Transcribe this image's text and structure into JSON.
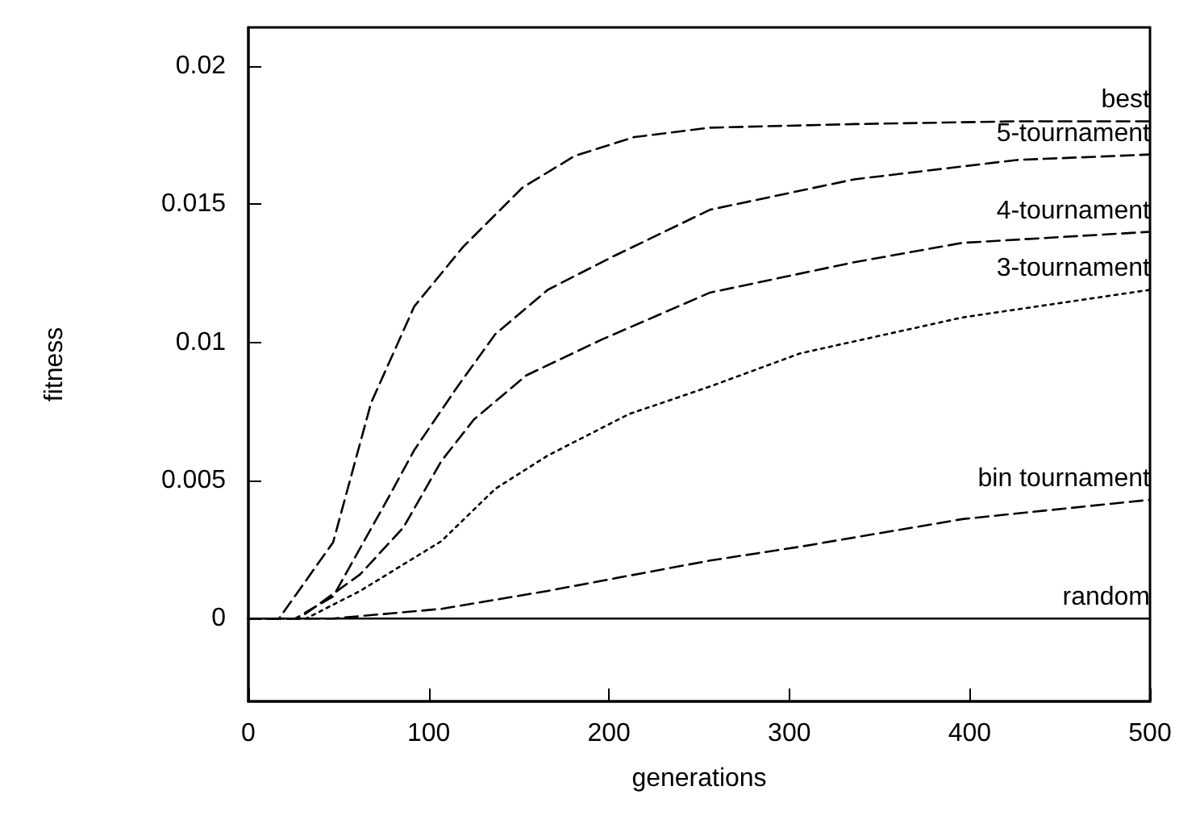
{
  "chart_data": {
    "type": "line",
    "xlabel": "generations",
    "ylabel": "fitness",
    "xlim": [
      0,
      500
    ],
    "xticks": [
      0,
      100,
      200,
      300,
      400,
      500
    ],
    "ylim": [
      -0.003,
      0.0214
    ],
    "yticks": [
      0,
      0.005,
      0.01,
      0.015,
      0.02
    ],
    "grid": false,
    "legend": false,
    "marker": "none",
    "series": [
      {
        "name": "best",
        "color": "#000000",
        "line_style": "dashed",
        "x": [
          0,
          17,
          47,
          68,
          92,
          119,
          152,
          181,
          214,
          256,
          336,
          426,
          500
        ],
        "values": [
          0,
          0,
          0.00276,
          0.0078,
          0.0113,
          0.01345,
          0.0156,
          0.01675,
          0.01743,
          0.01777,
          0.0179,
          0.018,
          0.018
        ]
      },
      {
        "name": "5-tournament",
        "color": "#000000",
        "line_style": "dashed",
        "x": [
          0,
          26,
          47,
          77,
          92,
          116,
          137,
          166,
          202,
          256,
          336,
          426,
          500
        ],
        "values": [
          0,
          0,
          0.0008,
          0.0043,
          0.0061,
          0.0084,
          0.0103,
          0.0119,
          0.0131,
          0.0148,
          0.0159,
          0.0166,
          0.0168
        ]
      },
      {
        "name": "4-tournament",
        "color": "#000000",
        "line_style": "dashed",
        "x": [
          0,
          28,
          62,
          86,
          107,
          125,
          154,
          196,
          256,
          336,
          396,
          500
        ],
        "values": [
          0,
          0,
          0.0016,
          0.0033,
          0.0057,
          0.0072,
          0.0088,
          0.0101,
          0.0118,
          0.0129,
          0.0136,
          0.014
        ]
      },
      {
        "name": "3-tournament",
        "color": "#000000",
        "line_style": "dotted",
        "x": [
          0,
          32,
          62,
          107,
          137,
          166,
          211,
          256,
          306,
          396,
          500
        ],
        "values": [
          0,
          0,
          0.001,
          0.0028,
          0.0047,
          0.0059,
          0.0074,
          0.0084,
          0.0096,
          0.0109,
          0.0119
        ]
      },
      {
        "name": "bin tournament",
        "color": "#000000",
        "line_style": "dashed",
        "x": [
          0,
          47,
          107,
          166,
          256,
          306,
          396,
          500
        ],
        "values": [
          0,
          0,
          0.00035,
          0.001,
          0.0021,
          0.0026,
          0.0036,
          0.0043
        ]
      },
      {
        "name": "random",
        "color": "#000000",
        "line_style": "solid",
        "x": [
          0,
          500
        ],
        "values": [
          0,
          0
        ]
      }
    ]
  }
}
